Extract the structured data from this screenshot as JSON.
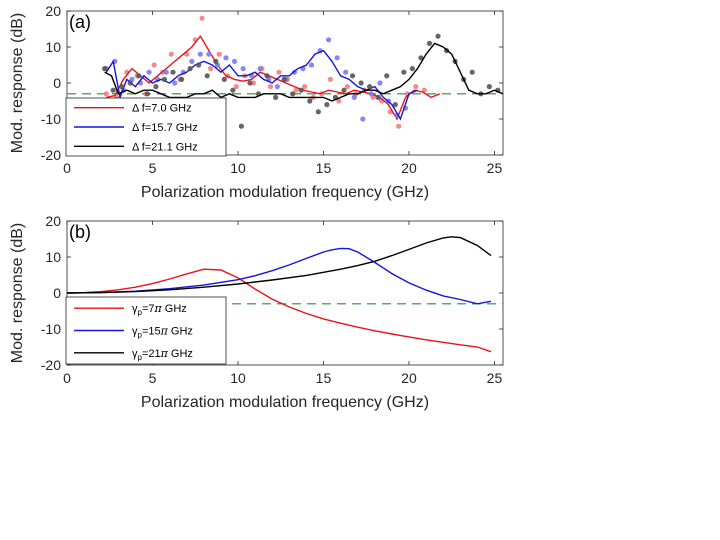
{
  "colors": {
    "red": "#e8141b",
    "blue": "#1414e0",
    "black": "#000000",
    "ref": "#2e8b2e",
    "dot_red": "#f08080",
    "dot_blue": "#7a7af0",
    "dot_black": "#555555"
  },
  "chart_data": [
    {
      "type": "line",
      "panel_label": "(a)",
      "xlabel": "Polarization modulation frequency (GHz)",
      "ylabel": "Mod. response (dB)",
      "xlim": [
        0,
        25.5
      ],
      "ylim": [
        -20,
        20
      ],
      "xticks": [
        0,
        5,
        10,
        15,
        20,
        25
      ],
      "yticks": [
        -20,
        -10,
        0,
        10,
        20
      ],
      "reference_line_db": -3,
      "legend": {
        "placement": "bottom-left"
      },
      "series": [
        {
          "name": "Δ f=7.0 GHz",
          "label_prefix": "Δ f=",
          "label_value": "7.0 GHz",
          "color_key": "red",
          "line_x": [
            2.3,
            2.8,
            3.3,
            3.8,
            4.3,
            4.8,
            5.3,
            5.8,
            6.3,
            6.8,
            7.3,
            7.8,
            8.3,
            8.8,
            9.3,
            9.8,
            10.3,
            10.8,
            11.3,
            11.8,
            12.3,
            12.8,
            13.3,
            13.8,
            14.3,
            14.8,
            15.3,
            15.8,
            16.3,
            16.8,
            17.3,
            17.8,
            18.3,
            18.8,
            19.3,
            19.8,
            20.3,
            20.8,
            21.3,
            21.8
          ],
          "line_y": [
            -4,
            -3.5,
            1,
            4,
            2,
            0,
            2,
            4,
            6,
            8,
            10,
            13,
            9,
            5,
            2,
            1,
            0.5,
            1,
            3,
            2,
            1,
            0,
            -1,
            -2,
            -2.5,
            -3,
            -2,
            -2.5,
            -3,
            -2,
            -2.5,
            -3,
            -4,
            -6,
            -10,
            -4,
            -2,
            -2.5,
            -4,
            -3
          ],
          "points_x": [
            2.3,
            2.9,
            3.5,
            4.1,
            4.6,
            5.1,
            5.6,
            6.1,
            6.6,
            7.0,
            7.5,
            7.9,
            8.4,
            8.9,
            9.4,
            9.9,
            10.4,
            10.9,
            11.4,
            11.9,
            12.4,
            12.9,
            13.4,
            13.9,
            14.4,
            14.9,
            15.4,
            15.9,
            16.4,
            16.9,
            17.4,
            17.9,
            18.4,
            18.9,
            19.4,
            19.9,
            20.4,
            20.9
          ],
          "points_y": [
            -3,
            -4,
            3,
            2,
            -3,
            5,
            3,
            8,
            1,
            8,
            12,
            18,
            4,
            8,
            2,
            -1,
            2,
            0,
            4,
            -1,
            3,
            1,
            -2,
            -1,
            -4,
            -3,
            1,
            -5,
            -1,
            -3,
            -2,
            -4,
            -5,
            -8,
            -12,
            -3,
            -1,
            -2
          ]
        },
        {
          "name": "Δ f=15.7 GHz",
          "label_prefix": "Δ f=",
          "label_value": "15.7 GHz",
          "color_key": "blue",
          "line_x": [
            2.3,
            2.7,
            3.1,
            3.5,
            4.0,
            4.5,
            5.0,
            5.5,
            6.0,
            6.5,
            7.0,
            7.5,
            8.0,
            8.5,
            9.0,
            9.5,
            10.0,
            10.5,
            11.0,
            11.5,
            12.0,
            12.5,
            13.0,
            13.5,
            14.0,
            14.5,
            15.0,
            15.5,
            16.0,
            16.5,
            17.0,
            17.5,
            18.0,
            18.5,
            19.0,
            19.5,
            20.0,
            20.5
          ],
          "line_y": [
            3,
            6,
            -4,
            1,
            -1,
            2,
            0,
            1,
            0,
            2,
            3,
            5,
            6,
            5,
            3,
            5,
            2,
            2,
            3,
            1,
            0,
            2,
            2,
            4,
            5,
            8,
            9,
            6,
            2,
            1,
            -1,
            -2,
            -1,
            -4,
            -6,
            -10,
            -3,
            -2
          ],
          "points_x": [
            2.3,
            2.8,
            3.3,
            3.8,
            4.3,
            4.8,
            5.3,
            5.8,
            6.3,
            6.8,
            7.3,
            7.8,
            8.3,
            8.8,
            9.3,
            9.8,
            10.3,
            10.8,
            11.3,
            11.8,
            12.3,
            12.8,
            13.3,
            13.8,
            14.3,
            14.8,
            15.3,
            15.8,
            16.3,
            16.8,
            17.3,
            17.8,
            18.3,
            18.8,
            19.3,
            19.8
          ],
          "points_y": [
            4,
            6,
            -2,
            1,
            0,
            3,
            1,
            3,
            0,
            3,
            6,
            8,
            8,
            5,
            7,
            6,
            4,
            2,
            4,
            1,
            -1,
            1,
            3,
            4,
            5,
            9,
            12,
            7,
            3,
            -4,
            -10,
            -3,
            0,
            -5,
            -9,
            -7
          ]
        },
        {
          "name": "Δ f=21.1 GHz",
          "label_prefix": "Δ f=",
          "label_value": "21.1 GHz",
          "color_key": "black",
          "line_x": [
            2.2,
            2.6,
            3.0,
            3.5,
            4.0,
            4.5,
            5.0,
            5.5,
            6.0,
            6.5,
            7.0,
            7.5,
            8.0,
            8.5,
            9.0,
            9.5,
            10.0,
            10.5,
            11.0,
            11.5,
            12.0,
            12.5,
            13.0,
            13.5,
            14.0,
            14.5,
            15.0,
            15.5,
            16.0,
            16.5,
            17.0,
            17.5,
            18.0,
            18.5,
            19.0,
            19.5,
            20.0,
            20.5,
            21.0,
            21.5,
            22.0,
            22.5,
            23.0,
            23.5,
            24.0,
            24.5,
            25.0,
            25.5
          ],
          "line_y": [
            3,
            2,
            -3,
            -2,
            -3,
            -2,
            -2,
            -3,
            -4,
            -4,
            -4,
            -3,
            -3,
            -2,
            -4,
            -3,
            -4,
            -4,
            -4,
            -3,
            -3,
            -3,
            -4,
            -4,
            -4,
            -4,
            -4,
            -5,
            -4,
            -3,
            -3,
            -2,
            -2,
            -3,
            -2,
            -1,
            1,
            4,
            8,
            11,
            10,
            8,
            3,
            -2,
            -3,
            -3,
            -2,
            -3
          ],
          "points_x": [
            2.2,
            2.7,
            3.2,
            3.7,
            4.2,
            4.7,
            5.2,
            5.7,
            6.2,
            6.7,
            7.2,
            7.7,
            8.2,
            8.7,
            9.2,
            9.7,
            10.2,
            10.7,
            11.2,
            11.7,
            12.2,
            12.7,
            13.2,
            13.7,
            14.2,
            14.7,
            15.2,
            15.7,
            16.2,
            16.7,
            17.2,
            17.7,
            18.2,
            18.7,
            19.2,
            19.7,
            20.2,
            20.7,
            21.2,
            21.7,
            22.2,
            22.7,
            23.2,
            23.7,
            24.2,
            24.7,
            25.2
          ],
          "points_y": [
            4,
            -2,
            -1,
            0,
            2,
            -3,
            -1,
            1,
            3,
            1,
            4,
            5,
            2,
            6,
            1,
            -2,
            -12,
            0,
            -3,
            2,
            -4,
            1,
            -3,
            -2,
            -5,
            -8,
            -6,
            -4,
            -2,
            2,
            0,
            -1,
            -4,
            2,
            -6,
            3,
            4,
            7,
            11,
            13,
            9,
            6,
            1,
            3,
            -3,
            -1,
            -2
          ]
        }
      ]
    },
    {
      "type": "line",
      "panel_label": "(b)",
      "xlabel": "Polarization modulation frequency (GHz)",
      "ylabel": "Mod. response (dB)",
      "xlim": [
        0,
        25.5
      ],
      "ylim": [
        -20,
        20
      ],
      "xticks": [
        0,
        5,
        10,
        15,
        20,
        25
      ],
      "yticks": [
        -20,
        -10,
        0,
        10,
        20
      ],
      "reference_line_db": -3,
      "legend": {
        "placement": "bottom-left"
      },
      "series": [
        {
          "name": "γp=7π GHz",
          "label_value": "=7",
          "suffix": " GHz",
          "color_key": "red",
          "x": [
            0,
            1,
            2,
            3,
            4,
            5,
            6,
            7,
            8,
            9,
            10,
            11,
            12,
            13,
            14,
            15,
            16,
            17,
            18,
            19,
            20,
            21,
            22,
            23,
            24,
            24.8
          ],
          "y": [
            0,
            0.1,
            0.4,
            0.9,
            1.6,
            2.6,
            3.9,
            5.3,
            6.6,
            6.4,
            4.2,
            1.1,
            -1.7,
            -3.9,
            -5.7,
            -7.2,
            -8.4,
            -9.5,
            -10.5,
            -11.4,
            -12.2,
            -13.0,
            -13.7,
            -14.4,
            -15.0,
            -16.3
          ]
        },
        {
          "name": "γp=15π GHz",
          "label_value": "=15",
          "suffix": " GHz",
          "color_key": "blue",
          "x": [
            0,
            2,
            4,
            6,
            8,
            10,
            11,
            12,
            13,
            14,
            15,
            15.5,
            16,
            16.5,
            17,
            18,
            19,
            20,
            21,
            22,
            23,
            24,
            24.8
          ],
          "y": [
            0,
            0.1,
            0.5,
            1.2,
            2.2,
            3.7,
            4.8,
            6.2,
            7.8,
            9.6,
            11.4,
            12.0,
            12.4,
            12.3,
            11.4,
            8.5,
            5.4,
            2.8,
            0.8,
            -0.8,
            -1.8,
            -3.0,
            -2.3
          ]
        },
        {
          "name": "γp=21π GHz",
          "label_value": "=21",
          "suffix": " GHz",
          "color_key": "black",
          "x": [
            0,
            2,
            4,
            6,
            8,
            10,
            12,
            14,
            16,
            17,
            18,
            19,
            20,
            21,
            22,
            22.5,
            23,
            24,
            24.8
          ],
          "y": [
            0,
            0.1,
            0.4,
            0.9,
            1.6,
            2.5,
            3.6,
            4.9,
            6.6,
            7.6,
            8.8,
            10.4,
            12.1,
            13.9,
            15.3,
            15.6,
            15.4,
            13.2,
            10.4
          ]
        }
      ]
    }
  ]
}
